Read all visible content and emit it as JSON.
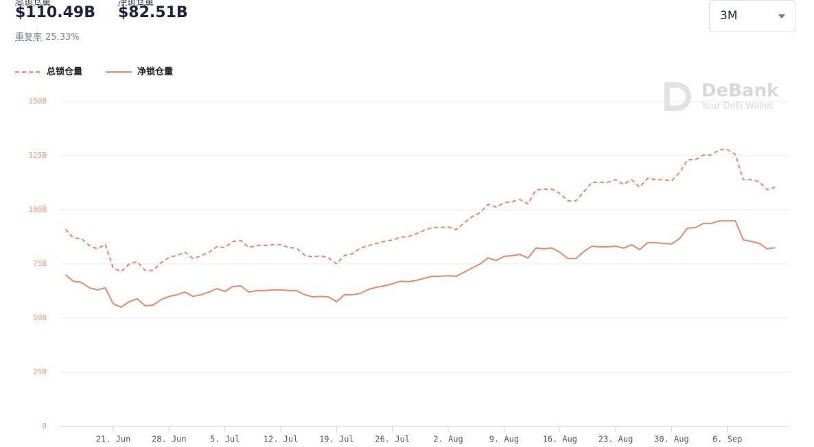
{
  "header": {
    "tvl_label": "总锁仓量",
    "tvl_value": "$110.49B",
    "net_label": "净锁仓量",
    "net_value": "$82.51B",
    "dup_label": "重复率",
    "dup_value": "25.33%",
    "range": "3M"
  },
  "watermark": {
    "brand": "DeBank",
    "tagline": "Your DeFi Wallet"
  },
  "chart_data": {
    "type": "line",
    "categories": [
      null,
      null,
      null,
      null,
      null,
      null,
      "21. Jun",
      null,
      null,
      null,
      null,
      null,
      null,
      "28. Jun",
      null,
      null,
      null,
      null,
      null,
      null,
      "5. Jul",
      null,
      null,
      null,
      null,
      null,
      null,
      "12. Jul",
      null,
      null,
      null,
      null,
      null,
      null,
      "19. Jul",
      null,
      null,
      null,
      null,
      null,
      null,
      "26. Jul",
      null,
      null,
      null,
      null,
      null,
      null,
      "2. Aug",
      null,
      null,
      null,
      null,
      null,
      null,
      "9. Aug",
      null,
      null,
      null,
      null,
      null,
      null,
      "16. Aug",
      null,
      null,
      null,
      null,
      null,
      null,
      "23. Aug",
      null,
      null,
      null,
      null,
      null,
      null,
      "30. Aug",
      null,
      null,
      null,
      null,
      null,
      null,
      "6. Sep",
      null,
      null,
      null,
      null,
      null,
      null
    ],
    "series": [
      {
        "name": "总锁仓量",
        "color": "#e8896a",
        "line_style": "dashed",
        "values": [
          91,
          87,
          86.7,
          83.5,
          82,
          84,
          73,
          71.5,
          75,
          76,
          72,
          72,
          75.6,
          78,
          79,
          80.4,
          77.5,
          78.8,
          80.4,
          83,
          82.6,
          85.4,
          85.8,
          82.6,
          83.5,
          83.5,
          83.9,
          83.9,
          82.6,
          82.3,
          79,
          78.2,
          78.8,
          77.8,
          75,
          79,
          79.7,
          82.3,
          83.5,
          84.5,
          85.4,
          86,
          87.3,
          87.7,
          89,
          90.5,
          91.8,
          91.8,
          92.1,
          90.8,
          94,
          96.8,
          98.7,
          102.5,
          101.3,
          103.2,
          103.8,
          104.7,
          102.8,
          109.2,
          109.5,
          109.5,
          107.6,
          104.1,
          104.1,
          108.2,
          112.7,
          112.7,
          112.7,
          113.9,
          111.7,
          113.9,
          110.4,
          114.6,
          113.9,
          113.9,
          113.3,
          117.1,
          123.1,
          123.1,
          125.3,
          125.3,
          127.8,
          127.8,
          125.6,
          113.9,
          113.9,
          113,
          109.2,
          110.5
        ]
      },
      {
        "name": "净锁仓量",
        "color": "#e8896a",
        "line_style": "solid",
        "values": [
          70,
          67,
          66.5,
          64,
          63,
          64,
          56.6,
          55,
          57.6,
          58.9,
          55.7,
          56,
          58.5,
          60,
          60.8,
          62,
          60,
          60.8,
          62,
          63.6,
          62.3,
          64.6,
          64.9,
          62,
          62.7,
          62.7,
          63,
          63,
          62.7,
          62.7,
          60.8,
          59.8,
          60,
          59.8,
          57.6,
          60.8,
          60.8,
          61.4,
          63.3,
          64.2,
          64.9,
          65.8,
          67,
          66.8,
          67.4,
          68.4,
          69.3,
          69.3,
          69.6,
          69.3,
          71.2,
          73.1,
          75,
          77.8,
          76.6,
          78.5,
          78.8,
          79.4,
          77.8,
          82.3,
          82,
          82.3,
          80.4,
          77.5,
          77.5,
          80.7,
          83.2,
          82.9,
          82.9,
          83.2,
          82.3,
          83.9,
          81.6,
          84.8,
          84.8,
          84.5,
          84.2,
          86.7,
          91.5,
          91.8,
          93.7,
          93.7,
          94.9,
          94.9,
          94.9,
          86.1,
          85.4,
          84.5,
          82,
          82.5
        ]
      }
    ],
    "ylim": [
      0,
      150
    ],
    "yticks": [
      0,
      {
        "value": 25,
        "label": "25B"
      },
      {
        "value": 50,
        "label": "50B"
      },
      {
        "value": 75,
        "label": "75B"
      },
      {
        "value": 100,
        "label": "100B"
      },
      {
        "value": 125,
        "label": "125B"
      },
      {
        "value": 150,
        "label": "150B"
      }
    ],
    "grid": true
  }
}
